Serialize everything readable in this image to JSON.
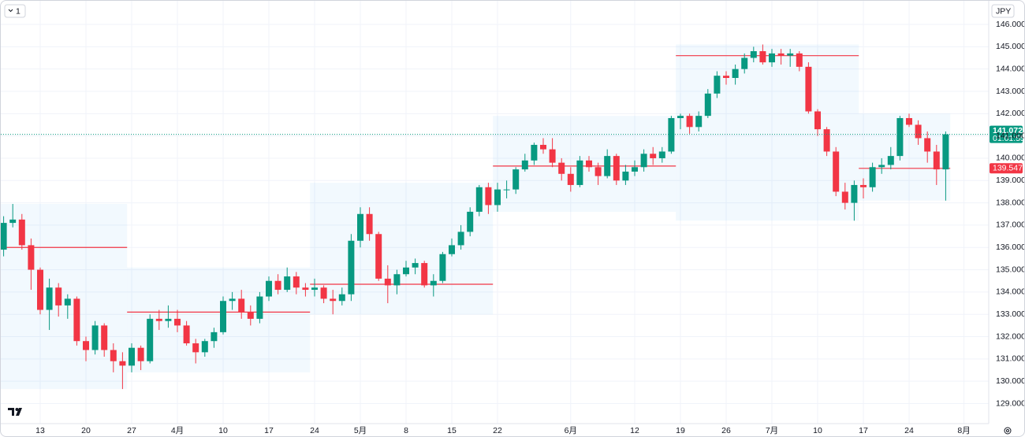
{
  "chart_data": {
    "type": "candlestick",
    "interval": "1",
    "currency": "JPY",
    "countdown": "01:01:55",
    "categories": [
      null,
      null,
      null,
      null,
      "13",
      null,
      null,
      null,
      null,
      "20",
      null,
      null,
      null,
      null,
      "27",
      null,
      null,
      null,
      null,
      "4月",
      null,
      null,
      null,
      null,
      "10",
      null,
      null,
      null,
      null,
      "17",
      null,
      null,
      null,
      null,
      "24",
      null,
      null,
      null,
      null,
      "5月",
      null,
      null,
      null,
      null,
      "8",
      null,
      null,
      null,
      null,
      "15",
      null,
      null,
      null,
      null,
      "22",
      null,
      null,
      null,
      null,
      null,
      null,
      null,
      "6月",
      null,
      null,
      null,
      null,
      null,
      null,
      "12",
      null,
      null,
      null,
      null,
      "19",
      null,
      null,
      null,
      null,
      "26",
      null,
      null,
      null,
      null,
      "7月",
      null,
      null,
      null,
      null,
      "10",
      null,
      null,
      null,
      null,
      "17",
      null,
      null,
      null,
      null,
      "24",
      null,
      null,
      null,
      null,
      null,
      "8月"
    ],
    "open": [
      135.9,
      137.1,
      137.25,
      136.1,
      135.0,
      133.2,
      134.2,
      133.4,
      133.7,
      131.8,
      131.4,
      132.5,
      131.4,
      130.9,
      130.7,
      131.5,
      130.9,
      132.8,
      132.7,
      132.8,
      132.5,
      131.7,
      131.3,
      131.8,
      132.2,
      133.6,
      133.7,
      133.1,
      132.8,
      133.8,
      134.5,
      134.1,
      134.7,
      134.2,
      134.1,
      134.2,
      133.7,
      133.6,
      133.9,
      136.3,
      137.5,
      136.6,
      134.6,
      134.3,
      134.8,
      135.1,
      135.3,
      134.3,
      134.5,
      135.7,
      136.1,
      136.7,
      137.6,
      138.7,
      137.9,
      138.6,
      138.6,
      139.5,
      139.9,
      140.6,
      140.4,
      139.8,
      139.3,
      138.8,
      139.9,
      139.6,
      139.2,
      140.1,
      139.0,
      139.4,
      139.6,
      140.2,
      140.0,
      140.3,
      141.8,
      141.9,
      141.4,
      141.9,
      142.9,
      143.7,
      143.6,
      144.0,
      144.5,
      144.8,
      144.3,
      144.7,
      144.6,
      144.7,
      144.1,
      142.1,
      141.3,
      140.3,
      138.5,
      138.0,
      138.8,
      138.7,
      139.6,
      139.7,
      140.1,
      141.8,
      141.5,
      140.9,
      140.3,
      139.5,
      null,
      null
    ],
    "high": [
      137.4,
      137.95,
      137.5,
      136.4,
      135.1,
      134.6,
      134.4,
      133.9,
      133.8,
      132.0,
      132.7,
      132.6,
      131.7,
      131.3,
      131.7,
      131.6,
      133.0,
      133.2,
      133.4,
      133.2,
      132.7,
      131.9,
      131.9,
      132.4,
      133.8,
      134.0,
      134.1,
      133.4,
      134.0,
      134.7,
      134.8,
      135.1,
      134.9,
      134.4,
      134.6,
      134.3,
      134.1,
      134.2,
      136.6,
      137.8,
      137.8,
      136.7,
      135.2,
      135.0,
      135.4,
      135.5,
      135.4,
      134.8,
      135.8,
      136.4,
      137.0,
      137.8,
      138.8,
      138.9,
      138.9,
      139.0,
      139.6,
      140.2,
      140.7,
      140.9,
      140.9,
      140.0,
      139.6,
      140.1,
      140.1,
      139.8,
      140.4,
      140.2,
      139.7,
      139.9,
      140.4,
      140.5,
      140.5,
      141.9,
      142.0,
      142.0,
      142.1,
      143.1,
      143.9,
      143.9,
      144.2,
      144.7,
      145.0,
      145.1,
      144.9,
      144.9,
      144.9,
      144.8,
      144.3,
      142.2,
      141.4,
      140.5,
      138.9,
      139.0,
      139.1,
      139.8,
      140.0,
      140.5,
      141.9,
      142.0,
      141.7,
      141.2,
      140.6,
      141.2,
      null,
      null
    ],
    "low": [
      135.6,
      136.9,
      135.9,
      134.1,
      133.0,
      132.3,
      132.9,
      132.8,
      131.6,
      130.9,
      131.2,
      131.1,
      130.4,
      129.65,
      130.4,
      130.5,
      130.8,
      132.3,
      132.4,
      132.2,
      131.6,
      130.8,
      131.1,
      131.5,
      132.1,
      133.2,
      132.8,
      132.5,
      132.6,
      133.6,
      133.9,
      134.0,
      133.9,
      133.8,
      133.8,
      133.5,
      133.0,
      133.4,
      133.6,
      136.0,
      136.3,
      134.5,
      133.5,
      133.9,
      134.7,
      134.8,
      134.2,
      133.8,
      134.4,
      135.6,
      135.9,
      136.5,
      137.4,
      137.5,
      137.6,
      138.2,
      138.4,
      139.4,
      139.7,
      140.2,
      139.6,
      139.0,
      138.5,
      138.7,
      139.4,
      138.8,
      139.1,
      138.8,
      138.8,
      139.2,
      139.4,
      139.7,
      139.8,
      140.2,
      141.3,
      141.1,
      141.2,
      141.8,
      142.7,
      143.3,
      143.3,
      143.8,
      144.3,
      144.2,
      144.1,
      144.2,
      144.1,
      143.9,
      142.0,
      141.0,
      140.1,
      138.3,
      137.7,
      137.2,
      138.2,
      138.5,
      139.3,
      139.5,
      139.9,
      141.4,
      140.6,
      139.8,
      138.8,
      138.1,
      null,
      null
    ],
    "close": [
      137.1,
      137.25,
      136.1,
      135.0,
      133.2,
      134.2,
      133.4,
      133.7,
      131.8,
      131.4,
      132.5,
      131.4,
      130.9,
      130.7,
      131.5,
      130.9,
      132.8,
      132.7,
      132.8,
      132.5,
      131.7,
      131.3,
      131.8,
      132.2,
      133.6,
      133.7,
      133.1,
      132.8,
      133.8,
      134.5,
      134.1,
      134.7,
      134.2,
      134.1,
      134.2,
      133.7,
      133.6,
      133.9,
      136.3,
      137.5,
      136.6,
      134.6,
      134.3,
      134.8,
      135.1,
      135.3,
      134.3,
      134.5,
      135.7,
      136.1,
      136.7,
      137.6,
      138.7,
      137.9,
      138.6,
      138.6,
      139.5,
      139.9,
      140.6,
      140.4,
      139.8,
      139.3,
      138.8,
      139.9,
      139.6,
      139.2,
      140.1,
      139.0,
      139.4,
      139.6,
      140.2,
      140.0,
      140.3,
      141.8,
      141.9,
      141.4,
      141.9,
      142.9,
      143.7,
      143.6,
      144.0,
      144.5,
      144.8,
      144.3,
      144.7,
      144.6,
      144.7,
      144.1,
      142.1,
      141.3,
      140.3,
      138.5,
      138.0,
      138.8,
      138.7,
      139.6,
      139.7,
      140.1,
      141.8,
      141.5,
      140.9,
      140.3,
      139.5,
      141.072,
      null,
      null
    ],
    "up_color": "#089981",
    "down_color": "#f23645",
    "profiles": [
      {
        "poc": 136.0
      },
      {
        "poc": 133.1
      },
      {
        "poc": 134.35
      },
      {
        "poc": 139.65
      },
      {
        "poc": 144.6
      },
      {
        "poc": 139.547,
        "label": "139.547"
      }
    ],
    "ylim": [
      128.1,
      147.06
    ],
    "yticks": [
      {
        "value": 129,
        "label": "129.000"
      },
      {
        "value": 130,
        "label": "130.000"
      },
      {
        "value": 131,
        "label": "131.000"
      },
      {
        "value": 132,
        "label": "132.000"
      },
      {
        "value": 133,
        "label": "133.000"
      },
      {
        "value": 134,
        "label": "134.000"
      },
      {
        "value": 135,
        "label": "135.000"
      },
      {
        "value": 136,
        "label": "136.000"
      },
      {
        "value": 137,
        "label": "137.000"
      },
      {
        "value": 138,
        "label": "138.000"
      },
      {
        "value": 139,
        "label": "139.000"
      },
      {
        "value": 140,
        "label": "140.000"
      },
      {
        "value": 141,
        "label": "141.000"
      },
      {
        "value": 142,
        "label": "142.000"
      },
      {
        "value": 143,
        "label": "143.000"
      },
      {
        "value": 144,
        "label": "144.000"
      },
      {
        "value": 145,
        "label": "145.000"
      },
      {
        "value": 146,
        "label": "146.000"
      }
    ],
    "grid": true
  }
}
